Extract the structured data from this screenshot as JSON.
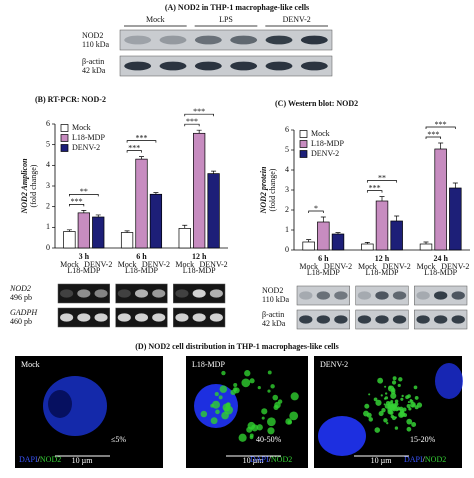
{
  "panel_a": {
    "title": "(A) NOD2 in THP-1  macrophage-like cells",
    "lanes": [
      "Mock",
      "LPS",
      "DENV-2"
    ],
    "rows": [
      {
        "name": "NOD2",
        "size": "110 kDa"
      },
      {
        "name": "β-actin",
        "size": "42 kDa"
      }
    ]
  },
  "chart_data": [
    {
      "type": "bar",
      "title": "(B) RT-PCR: NOD-2",
      "y_label": "NOD2 Amplicon",
      "y_sublabel": "(fold change)",
      "categories": [
        "3 h",
        "6 h",
        "12 h"
      ],
      "series": [
        {
          "name": "Mock",
          "color": "#ffffff",
          "values": [
            0.8,
            0.75,
            0.95
          ],
          "errors": [
            0.08,
            0.08,
            0.15
          ]
        },
        {
          "name": "L18-MDP",
          "color": "#c78cc0",
          "values": [
            1.7,
            4.3,
            5.55
          ],
          "errors": [
            0.12,
            0.12,
            0.15
          ]
        },
        {
          "name": "DENV-2",
          "color": "#1d1f78",
          "values": [
            1.5,
            2.6,
            3.6
          ],
          "errors": [
            0.1,
            0.08,
            0.12
          ]
        }
      ],
      "ylim": [
        0,
        6
      ],
      "yticks": [
        0,
        1,
        2,
        3,
        4,
        5,
        6
      ],
      "legend": "upper left",
      "annotations": [
        {
          "text": "***",
          "category": 0,
          "series": [
            0,
            1
          ]
        },
        {
          "text": "**",
          "category": 0,
          "series": [
            0,
            2
          ]
        },
        {
          "text": "***",
          "category": 1,
          "series": [
            0,
            1
          ]
        },
        {
          "text": "***",
          "category": 1,
          "series": [
            0,
            2
          ]
        },
        {
          "text": "***",
          "category": 2,
          "series": [
            0,
            1
          ]
        },
        {
          "text": "***",
          "category": 2,
          "series": [
            0,
            2
          ]
        }
      ],
      "blots": [
        {
          "name": "NOD2",
          "size": "496 pb"
        },
        {
          "name": "GADPH",
          "size": "460 pb"
        }
      ]
    },
    {
      "type": "bar",
      "title": "(C) Western blot: NOD2",
      "y_label": "NOD2 protein",
      "y_sublabel": "(fold change)",
      "categories": [
        "6 h",
        "12 h",
        "24 h"
      ],
      "series": [
        {
          "name": "Mock",
          "color": "#ffffff",
          "values": [
            0.4,
            0.3,
            0.3
          ],
          "errors": [
            0.12,
            0.08,
            0.1
          ]
        },
        {
          "name": "L18-MDP",
          "color": "#c78cc0",
          "values": [
            1.4,
            2.45,
            5.05
          ],
          "errors": [
            0.25,
            0.22,
            0.3
          ]
        },
        {
          "name": "DENV-2",
          "color": "#1d1f78",
          "values": [
            0.8,
            1.45,
            3.1
          ],
          "errors": [
            0.07,
            0.25,
            0.25
          ]
        }
      ],
      "ylim": [
        0,
        6
      ],
      "yticks": [
        0,
        1,
        2,
        3,
        4,
        5,
        6
      ],
      "legend": "upper left",
      "annotations": [
        {
          "text": "*",
          "category": 0,
          "series": [
            0,
            1
          ]
        },
        {
          "text": "***",
          "category": 1,
          "series": [
            0,
            1
          ]
        },
        {
          "text": "**",
          "category": 1,
          "series": [
            0,
            2
          ]
        },
        {
          "text": "***",
          "category": 2,
          "series": [
            0,
            1
          ]
        },
        {
          "text": "***",
          "category": 2,
          "series": [
            0,
            2
          ]
        }
      ],
      "blots": [
        {
          "name": "NOD2",
          "size": "110 kDa"
        },
        {
          "name": "β-actin",
          "size": "42 kDa"
        }
      ]
    }
  ],
  "panel_d": {
    "title": "(D) NOD2 cell distribution in THP-1 macrophages-like cells",
    "images": [
      {
        "label": "Mock",
        "percent": "≤5%"
      },
      {
        "label": "L18-MDP",
        "percent": "40-50%"
      },
      {
        "label": "DENV-2",
        "percent": "15-20%"
      }
    ],
    "stain_a": "DAPI",
    "separator": "/",
    "stain_b": "NOD2",
    "scale_bar": "10 µm"
  }
}
